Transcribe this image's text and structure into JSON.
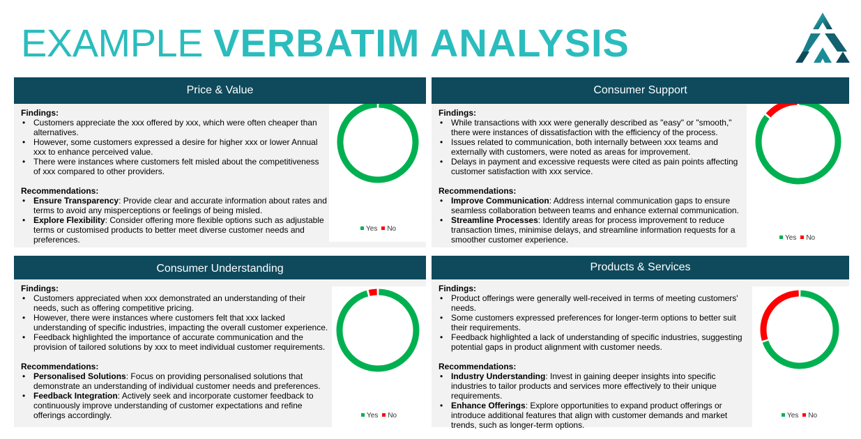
{
  "title": {
    "light": "EXAMPLE ",
    "bold": "VERBATIM ANALYSIS"
  },
  "colors": {
    "title": "#2bbcbd",
    "header_bg": "#0e4a5c",
    "body_bg": "#f2f2f2",
    "yes": "#00b050",
    "no": "#ff0000"
  },
  "logo": {
    "icon": "triangle-logo-icon"
  },
  "legend": {
    "yes": "Yes",
    "no": "No"
  },
  "panels": [
    {
      "title": "Price & Value",
      "findings_label": "Findings:",
      "findings": [
        "Customers appreciate the xxx offered by xxx, which were often cheaper than alternatives.",
        "However, some customers expressed a desire for higher xxx or lower Annual xxx to enhance perceived value.",
        "There were instances where customers felt misled about the competitiveness of xxx compared to other providers."
      ],
      "recommendations_label": "Recommendations:",
      "recommendations": [
        {
          "key": "Ensure Transparency",
          "text": ": Provide clear and accurate information about rates and terms to avoid any misperceptions or feelings of being misled."
        },
        {
          "key": "Explore Flexibility",
          "text": ": Consider offering more flexible options such as adjustable terms or customised products to better meet diverse customer needs and preferences."
        }
      ],
      "donut": {
        "yes": 1.0,
        "no": 0.0
      }
    },
    {
      "title": "Consumer Support",
      "findings_label": "Findings:",
      "findings": [
        "While transactions with xxx were generally described as \"easy\" or \"smooth,\" there were instances of dissatisfaction with the efficiency of the process.",
        "Issues related to communication, both internally between xxx teams and externally with customers, were noted as areas for improvement.",
        "Delays in payment and excessive requests were cited as pain points affecting customer satisfaction with xxx service."
      ],
      "recommendations_label": "Recommendations:",
      "recommendations": [
        {
          "key": "Improve Communication",
          "text": ": Address internal communication gaps to ensure seamless collaboration between teams and enhance external communication."
        },
        {
          "key": "Streamline Processes",
          "text": ": Identify areas for process improvement to reduce transaction times, minimise delays, and streamline information requests for a smoother customer experience."
        }
      ],
      "donut": {
        "yes": 0.86,
        "no": 0.14
      }
    },
    {
      "title": "Consumer Understanding",
      "findings_label": "Findings:",
      "findings": [
        "Customers appreciated when xxx demonstrated an understanding of their needs, such as offering competitive pricing.",
        "However, there were instances where customers felt that xxx lacked understanding of specific industries, impacting the overall customer experience.",
        "Feedback highlighted the importance of accurate communication and the provision of tailored solutions by xxx to meet individual customer requirements."
      ],
      "recommendations_label": "Recommendations:",
      "recommendations": [
        {
          "key": "Personalised Solutions",
          "text": ": Focus on providing personalised solutions that demonstrate an understanding of individual customer needs and preferences."
        },
        {
          "key": "Feedback Integration",
          "text": ": Actively seek and incorporate customer feedback to continuously improve understanding of customer expectations and refine offerings accordingly."
        }
      ],
      "donut": {
        "yes": 0.96,
        "no": 0.04
      }
    },
    {
      "title": "Products & Services",
      "findings_label": "Findings:",
      "findings": [
        "Product offerings were generally well-received in terms of meeting customers' needs.",
        "Some customers expressed preferences for longer-term options to better suit their requirements.",
        "Feedback highlighted a lack of understanding of specific industries, suggesting potential gaps in product alignment with customer needs."
      ],
      "recommendations_label": "Recommendations:",
      "recommendations": [
        {
          "key": "Industry Understanding",
          "text": ": Invest in gaining deeper insights into specific industries to tailor products and services more effectively to their unique requirements."
        },
        {
          "key": "Enhance Offerings",
          "text": ": Explore opportunities to expand product offerings or introduce additional features that align with customer demands and market trends, such as longer-term options."
        }
      ],
      "donut": {
        "yes": 0.7,
        "no": 0.3
      }
    }
  ]
}
